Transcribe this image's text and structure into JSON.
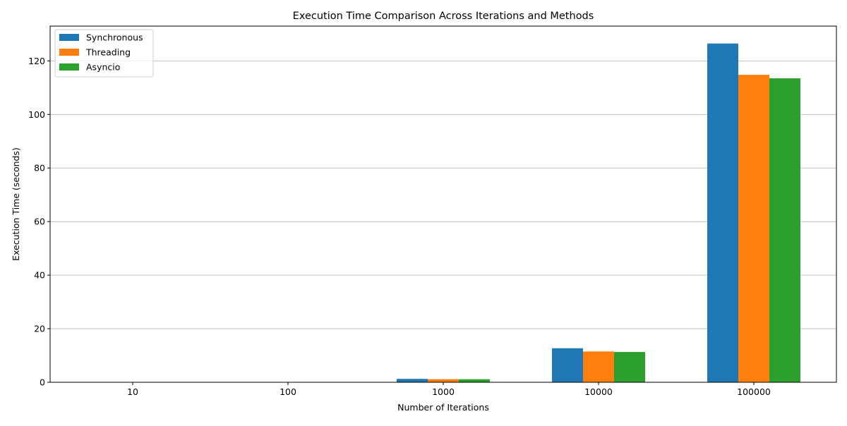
{
  "chart_data": {
    "type": "bar",
    "title": "Execution Time Comparison Across Iterations and Methods",
    "xlabel": "Number of Iterations",
    "ylabel": "Execution Time (seconds)",
    "categories": [
      "10",
      "100",
      "1000",
      "10000",
      "100000"
    ],
    "series": [
      {
        "name": "Synchronous",
        "color": "#1f77b4",
        "values": [
          0.0127,
          0.127,
          1.27,
          12.7,
          126.5
        ]
      },
      {
        "name": "Threading",
        "color": "#ff7f0e",
        "values": [
          0.0115,
          0.115,
          1.15,
          11.5,
          114.8
        ]
      },
      {
        "name": "Asyncio",
        "color": "#2ca02c",
        "values": [
          0.0113,
          0.113,
          1.13,
          11.3,
          113.5
        ]
      }
    ],
    "ylim": [
      0,
      133
    ],
    "yticks": [
      0,
      20,
      40,
      60,
      80,
      100,
      120
    ],
    "grid": "y",
    "legend": "top-left"
  }
}
